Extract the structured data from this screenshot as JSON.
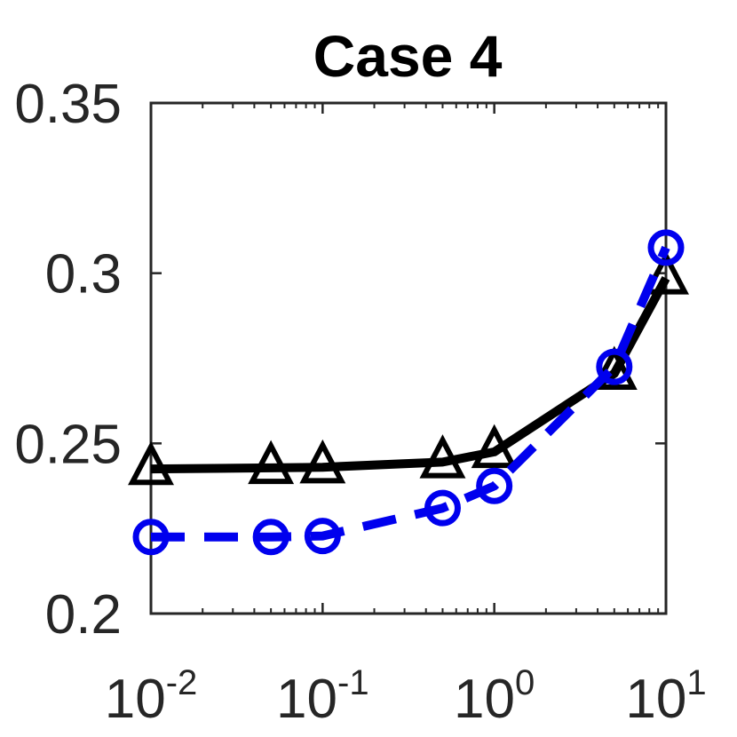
{
  "chart_data": {
    "type": "line",
    "title": "Case 4",
    "xlabel": "",
    "ylabel": "",
    "xscale": "log",
    "xlim": [
      0.01,
      10
    ],
    "ylim": [
      0.2,
      0.35
    ],
    "grid": false,
    "x_ticks": [
      {
        "base": "10",
        "exp": "-2",
        "value": 0.01
      },
      {
        "base": "10",
        "exp": "-1",
        "value": 0.1
      },
      {
        "base": "10",
        "exp": "0",
        "value": 1
      },
      {
        "base": "10",
        "exp": "1",
        "value": 10
      }
    ],
    "y_ticks": [
      {
        "label": "0.2",
        "value": 0.2
      },
      {
        "label": "0.25",
        "value": 0.25
      },
      {
        "label": "0.3",
        "value": 0.3
      },
      {
        "label": "0.35",
        "value": 0.35
      }
    ],
    "series": [
      {
        "marker": "triangle",
        "line_style": "solid",
        "color": "#000000",
        "x": [
          0.01,
          0.05,
          0.1,
          0.5,
          1,
          5,
          10
        ],
        "y": [
          0.2425,
          0.2428,
          0.243,
          0.2445,
          0.2475,
          0.2705,
          0.2985
        ]
      },
      {
        "marker": "circle",
        "line_style": "dashed",
        "color": "#0000ee",
        "x": [
          0.01,
          0.05,
          0.1,
          0.5,
          1,
          5,
          10
        ],
        "y": [
          0.2225,
          0.2225,
          0.2228,
          0.231,
          0.2375,
          0.2725,
          0.3075
        ]
      }
    ]
  }
}
